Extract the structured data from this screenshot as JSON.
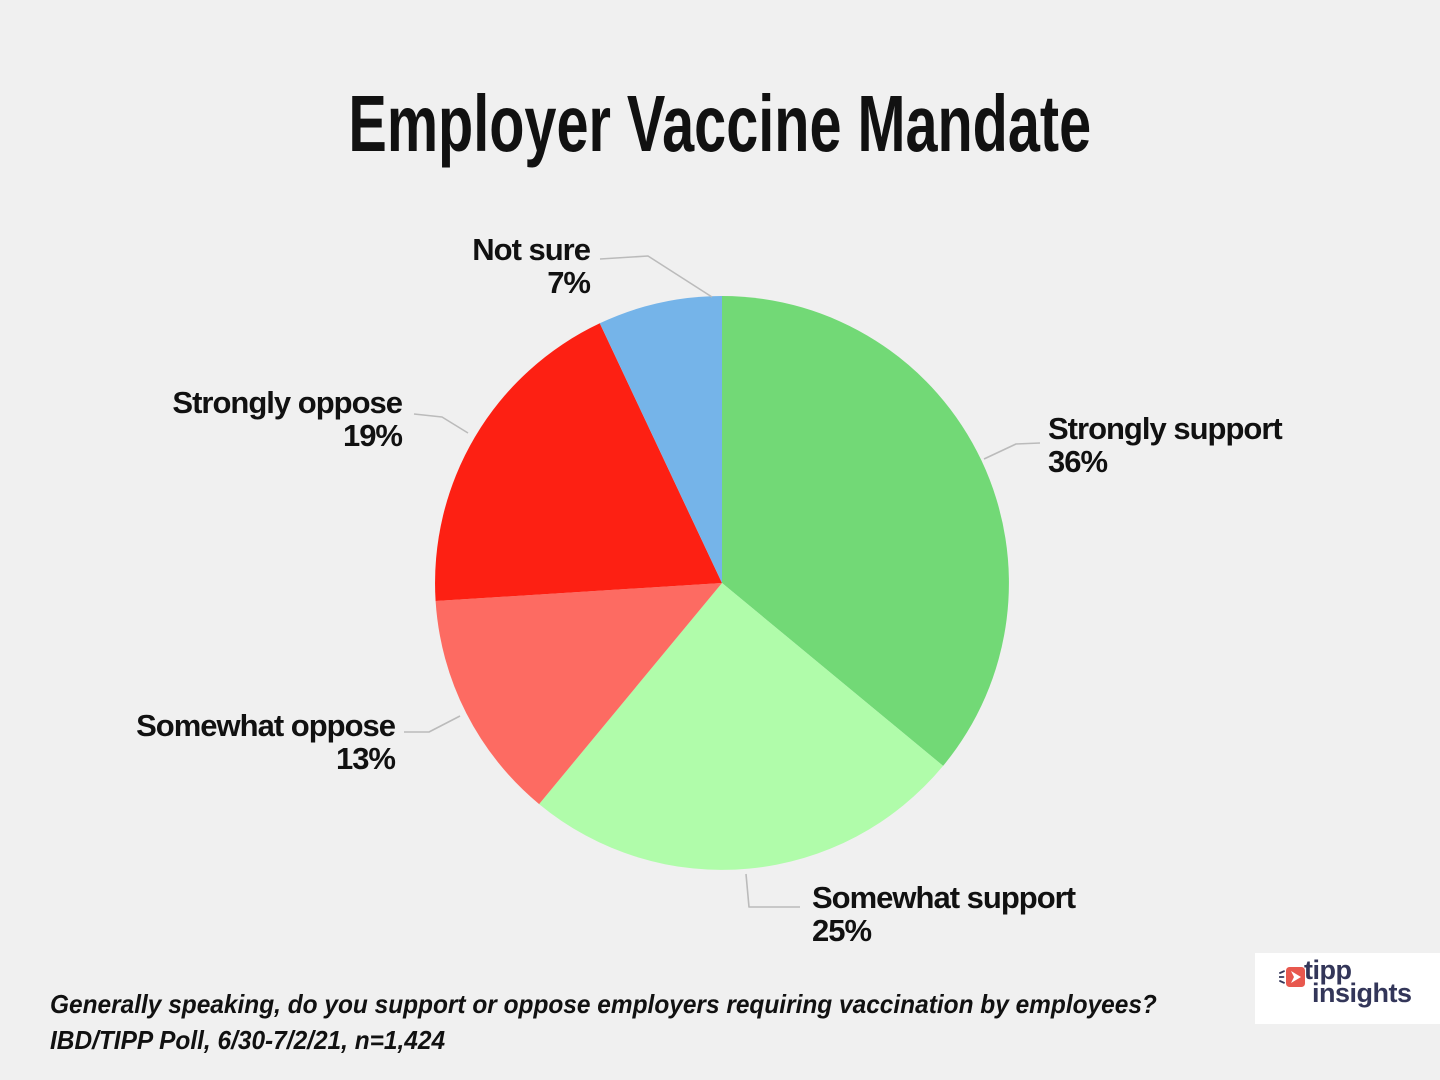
{
  "title": "Employer Vaccine Mandate",
  "chart_data": {
    "type": "pie",
    "title": "Employer Vaccine Mandate",
    "direction": "clockwise",
    "start_angle": "12 o'clock",
    "legend": "none (outside labels with leader lines)",
    "slices": [
      {
        "label": "Strongly support",
        "value": 36,
        "display": "36%",
        "color": "#72d976"
      },
      {
        "label": "Somewhat support",
        "value": 25,
        "display": "25%",
        "color": "#b0fcaa"
      },
      {
        "label": "Somewhat oppose",
        "value": 13,
        "display": "13%",
        "color": "#fd6b62"
      },
      {
        "label": "Strongly oppose",
        "value": 19,
        "display": "19%",
        "color": "#fd2013"
      },
      {
        "label": "Not sure",
        "value": 7,
        "display": "7%",
        "color": "#75b4e9"
      }
    ]
  },
  "footer": {
    "question": "Generally speaking, do you support or oppose employers requiring vaccination by employees?",
    "source": "IBD/TIPP Poll, 6/30-7/2/21, n=1,424"
  },
  "logo": {
    "word1": "tipp",
    "word2": "insights"
  },
  "colors": {
    "background": "#f0f0f0",
    "leader_line": "#bbbbbb",
    "text": "#111111",
    "logo_navy": "#333659",
    "logo_red": "#e8584e"
  }
}
